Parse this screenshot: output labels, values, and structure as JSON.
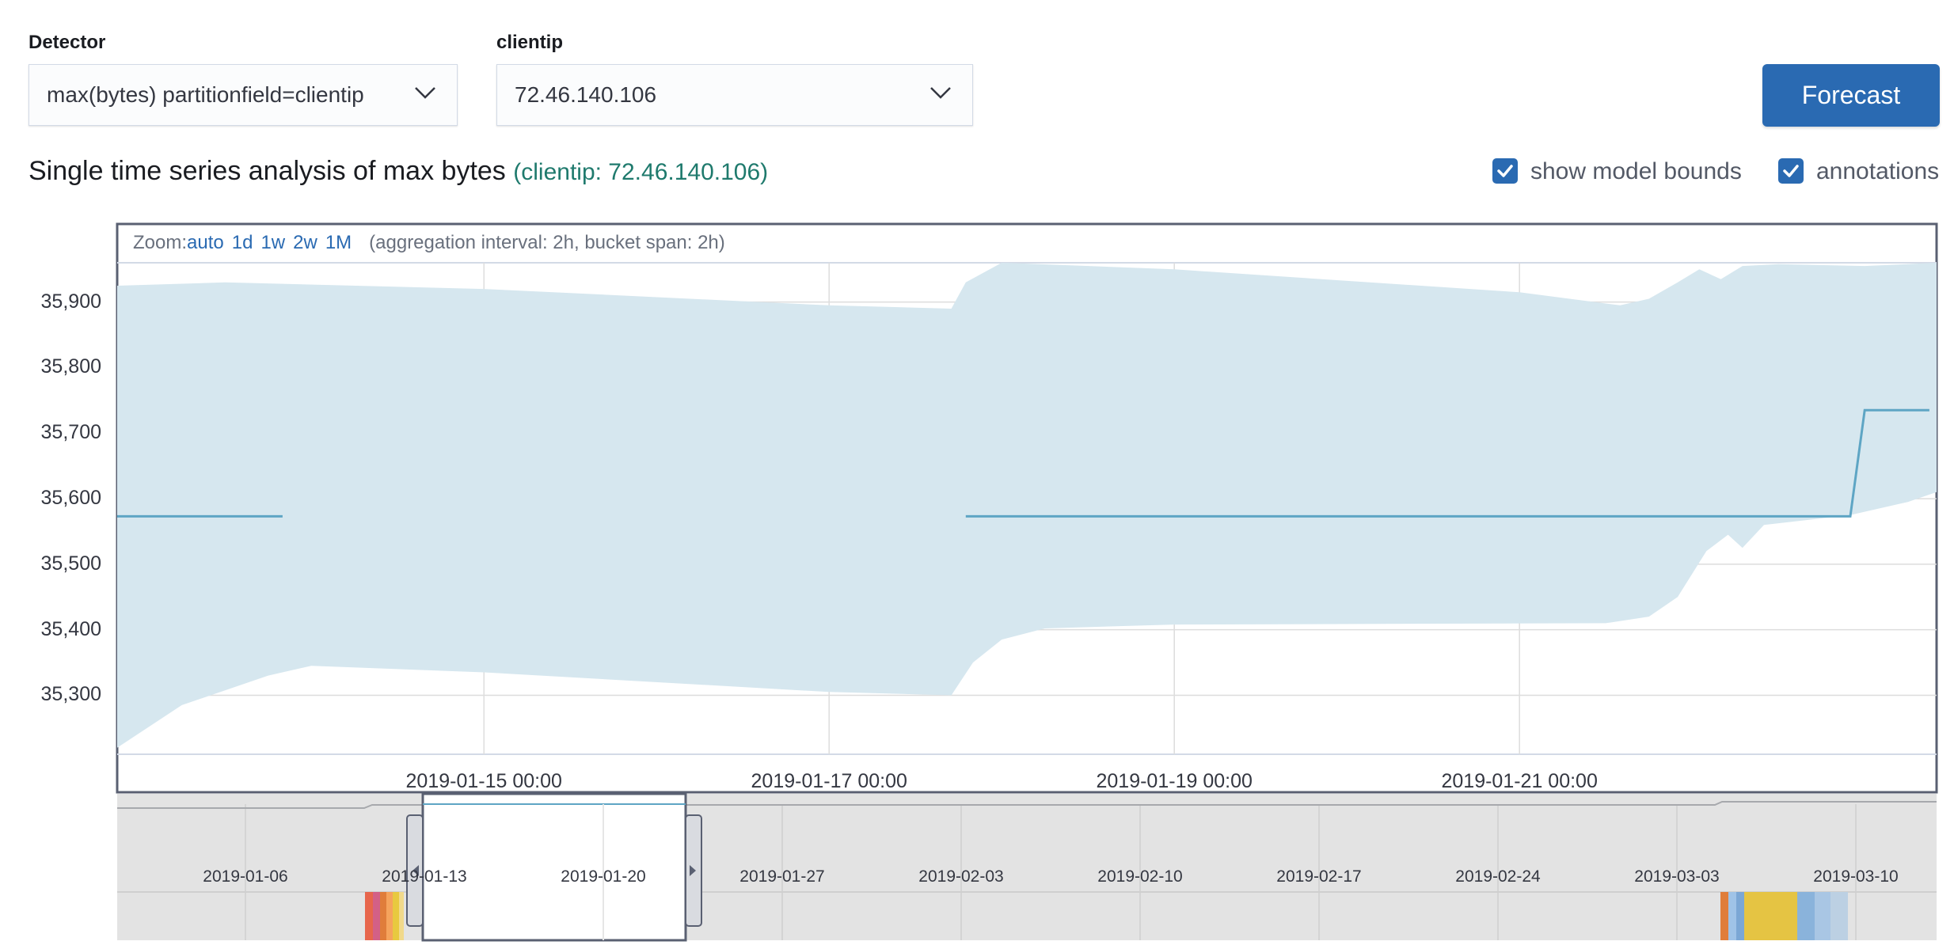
{
  "controls": {
    "detector_label": "Detector",
    "detector_value": "max(bytes) partitionfield=clientip",
    "clientip_label": "clientip",
    "clientip_value": "72.46.140.106",
    "forecast_label": "Forecast"
  },
  "header": {
    "title": "Single time series analysis of max bytes",
    "entity": "(clientip: 72.46.140.106)",
    "show_model_bounds_label": "show model bounds",
    "show_model_bounds_checked": true,
    "annotations_label": "annotations",
    "annotations_checked": true
  },
  "zoom": {
    "label": "Zoom:",
    "options": [
      "auto",
      "1d",
      "1w",
      "2w",
      "1M"
    ],
    "aggregation": "(aggregation interval: 2h, bucket span: 2h)"
  },
  "colors": {
    "accent": "#2a6ab2",
    "line": "#5ea5c4",
    "bounds": "#d6e7ef",
    "entity_text": "#1f7a6d"
  },
  "chart_data": {
    "type": "line",
    "title": "",
    "xlabel": "",
    "ylabel": "",
    "y_ticks": [
      "35,900",
      "35,800",
      "35,700",
      "35,600",
      "35,500",
      "35,400",
      "35,300"
    ],
    "x_ticks": [
      "2019-01-15 00:00",
      "2019-01-17 00:00",
      "2019-01-19 00:00",
      "2019-01-21 00:00"
    ],
    "ylim": [
      35210,
      35960
    ],
    "x_range": [
      "2019-01-12 21:00",
      "2019-01-23 10:00"
    ],
    "series": [
      {
        "values": [
          [
            "2019-01-12 21:00",
            35573
          ],
          [
            "2019-01-13 20:00",
            35573
          ],
          null,
          [
            "2019-01-17 19:00",
            35573
          ],
          [
            "2019-01-22 22:00",
            35573
          ],
          [
            "2019-01-23 00:00",
            35735
          ],
          [
            "2019-01-23 09:00",
            35735
          ]
        ]
      }
    ],
    "model_bounds": {
      "upper": [
        [
          "2019-01-12 21:00",
          35925
        ],
        [
          "2019-01-13 12:00",
          35930
        ],
        [
          "2019-01-15 00:00",
          35920
        ],
        [
          "2019-01-17 00:00",
          35895
        ],
        [
          "2019-01-17 17:00",
          35890
        ],
        [
          "2019-01-17 19:00",
          35930
        ],
        [
          "2019-01-18 00:00",
          35960
        ],
        [
          "2019-01-19 00:00",
          35950
        ],
        [
          "2019-01-21 00:00",
          35915
        ],
        [
          "2019-01-21 14:00",
          35895
        ],
        [
          "2019-01-21 18:00",
          35905
        ],
        [
          "2019-01-21 22:00",
          35930
        ],
        [
          "2019-01-22 01:00",
          35950
        ],
        [
          "2019-01-22 04:00",
          35935
        ],
        [
          "2019-01-22 07:00",
          35955
        ],
        [
          "2019-01-22 12:00",
          35958
        ],
        [
          "2019-01-23 00:00",
          35955
        ],
        [
          "2019-01-23 10:00",
          35960
        ]
      ],
      "lower": [
        [
          "2019-01-12 21:00",
          35220
        ],
        [
          "2019-01-13 06:00",
          35285
        ],
        [
          "2019-01-13 18:00",
          35330
        ],
        [
          "2019-01-14 00:00",
          35345
        ],
        [
          "2019-01-15 00:00",
          35335
        ],
        [
          "2019-01-17 00:00",
          35305
        ],
        [
          "2019-01-17 17:00",
          35300
        ],
        [
          "2019-01-17 20:00",
          35350
        ],
        [
          "2019-01-18 00:00",
          35385
        ],
        [
          "2019-01-18 06:00",
          35402
        ],
        [
          "2019-01-19 00:00",
          35408
        ],
        [
          "2019-01-21 12:00",
          35410
        ],
        [
          "2019-01-21 18:00",
          35420
        ],
        [
          "2019-01-21 22:00",
          35450
        ],
        [
          "2019-01-22 02:00",
          35520
        ],
        [
          "2019-01-22 05:00",
          35545
        ],
        [
          "2019-01-22 07:00",
          35525
        ],
        [
          "2019-01-22 10:00",
          35560
        ],
        [
          "2019-01-22 22:00",
          35575
        ],
        [
          "2019-01-23 06:00",
          35595
        ],
        [
          "2019-01-23 10:00",
          35610
        ]
      ]
    }
  },
  "context": {
    "ticks": [
      "2019-01-06",
      "2019-01-13",
      "2019-01-20",
      "2019-01-27",
      "2019-02-03",
      "2019-02-10",
      "2019-02-17",
      "2019-02-24",
      "2019-03-03",
      "2019-03-10"
    ]
  }
}
